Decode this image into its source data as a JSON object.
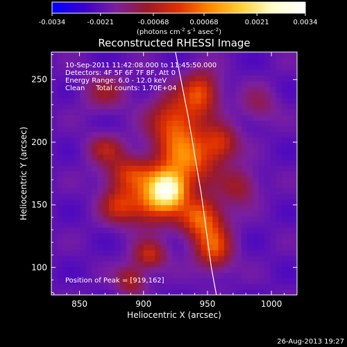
{
  "chart_data": {
    "type": "heatmap",
    "title": "Reconstructed RHESSI Image",
    "xlabel": "Heliocentric X (arcsec)",
    "ylabel": "Heliocentric Y (arcsec)",
    "xlim": [
      828,
      1020
    ],
    "ylim": [
      78,
      272
    ],
    "x_ticks": [
      850,
      900,
      950,
      1000
    ],
    "y_ticks": [
      100,
      150,
      200,
      250
    ],
    "x_tick_labels": [
      "850",
      "900",
      "950",
      "1000"
    ],
    "y_tick_labels": [
      "100",
      "150",
      "200",
      "250"
    ],
    "colorbar": {
      "range": [
        -0.0034,
        0.0034
      ],
      "ticks": [
        -0.0034,
        -0.0021,
        -0.00068,
        0.00068,
        0.0021,
        0.0034
      ],
      "tick_labels": [
        "-0.0034",
        "-0.0021",
        "-0.00068",
        "0.00068",
        "0.0021",
        "0.0034"
      ],
      "unit_main": "(photons cm",
      "unit_exp1": "-2",
      "unit_mid": " s",
      "unit_exp2": "-1",
      "unit_tail": " asec",
      "unit_exp3": "-2",
      "unit_close": ")",
      "colormap": [
        "#0000ff",
        "#3a00cc",
        "#7a1fa0",
        "#9a1a2a",
        "#e03000",
        "#ff8a00",
        "#ffd23a",
        "#ffffd0",
        "#ffffff"
      ]
    },
    "annotations": [
      "10-Sep-2011 11:42:08.000 to 11:45:50.000",
      "Detectors: 4F 5F 6F 7F 8F, Att 0",
      "Energy Range: 6.0 - 12.0 keV",
      "Clean     Total counts: 1.70E+04"
    ],
    "peak_label": "Position of Peak = [919,162]",
    "peak": [
      919,
      162
    ],
    "limb": [
      [
        925,
        272
      ],
      [
        935,
        220
      ],
      [
        945,
        160
      ],
      [
        953,
        100
      ],
      [
        957,
        78
      ]
    ],
    "sources": [
      {
        "x": 919,
        "y": 163,
        "amp": 1.0,
        "sx": 10,
        "sy": 10
      },
      {
        "x": 935,
        "y": 185,
        "amp": 0.55,
        "sx": 16,
        "sy": 14
      },
      {
        "x": 905,
        "y": 150,
        "amp": 0.5,
        "sx": 14,
        "sy": 12
      },
      {
        "x": 925,
        "y": 215,
        "amp": 0.55,
        "sx": 14,
        "sy": 16
      },
      {
        "x": 945,
        "y": 240,
        "amp": 0.5,
        "sx": 10,
        "sy": 12
      },
      {
        "x": 945,
        "y": 140,
        "amp": 0.6,
        "sx": 12,
        "sy": 12
      },
      {
        "x": 955,
        "y": 115,
        "amp": 0.5,
        "sx": 10,
        "sy": 12
      },
      {
        "x": 890,
        "y": 175,
        "amp": 0.45,
        "sx": 14,
        "sy": 10
      },
      {
        "x": 880,
        "y": 150,
        "amp": 0.35,
        "sx": 10,
        "sy": 10
      },
      {
        "x": 905,
        "y": 110,
        "amp": 0.4,
        "sx": 9,
        "sy": 8
      },
      {
        "x": 960,
        "y": 200,
        "amp": 0.4,
        "sx": 10,
        "sy": 10
      },
      {
        "x": 870,
        "y": 195,
        "amp": 0.3,
        "sx": 10,
        "sy": 8
      },
      {
        "x": 890,
        "y": 90,
        "amp": 0.35,
        "sx": 8,
        "sy": 8
      },
      {
        "x": 975,
        "y": 165,
        "amp": 0.3,
        "sx": 10,
        "sy": 10
      },
      {
        "x": 870,
        "y": 240,
        "amp": 0.25,
        "sx": 12,
        "sy": 10
      },
      {
        "x": 990,
        "y": 230,
        "amp": 0.2,
        "sx": 10,
        "sy": 10
      }
    ]
  },
  "footer": {
    "timestamp": "26-Aug-2013 19:27"
  }
}
